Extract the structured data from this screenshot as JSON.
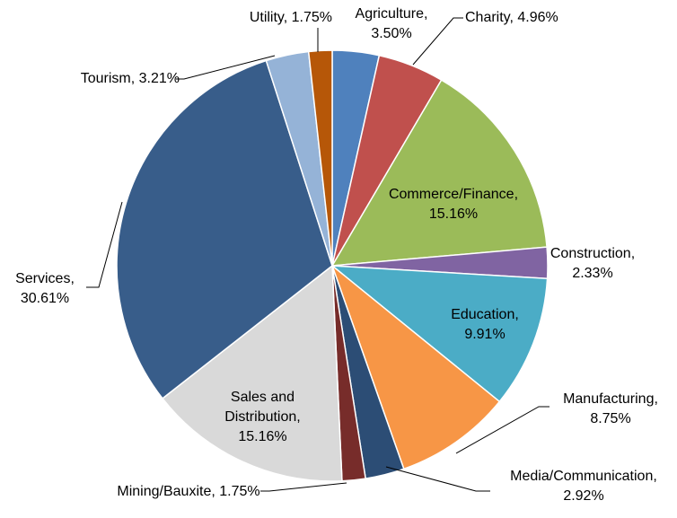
{
  "chart_data": {
    "type": "pie",
    "categories": [
      "Agriculture",
      "Charity",
      "Commerce/Finance",
      "Construction",
      "Education",
      "Manufacturing",
      "Media/Communication",
      "Mining/Bauxite",
      "Sales and Distribution",
      "Services",
      "Tourism",
      "Utility"
    ],
    "values": [
      3.5,
      4.96,
      15.16,
      2.33,
      9.91,
      8.75,
      2.92,
      1.75,
      15.16,
      30.61,
      3.21,
      1.75
    ],
    "value_labels": [
      "3.50%",
      "4.96%",
      "15.16%",
      "2.33%",
      "9.91%",
      "8.75%",
      "2.92%",
      "1.75%",
      "15.16%",
      "30.61%",
      "3.21%",
      "1.75%"
    ],
    "label_separator": ", ",
    "colors": [
      "#4f81bd",
      "#c0504d",
      "#9bbb59",
      "#8064a2",
      "#4bacc6",
      "#f79646",
      "#2c4d75",
      "#772c2a",
      "#d9d9d9",
      "#385d8a",
      "#95b3d7",
      "#b65708"
    ]
  }
}
